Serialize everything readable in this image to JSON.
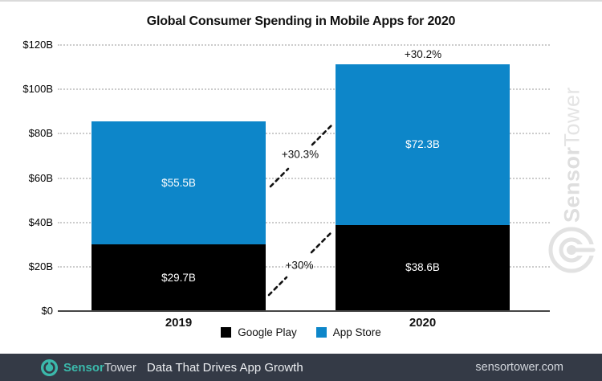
{
  "title": "Global Consumer Spending in Mobile Apps for 2020",
  "chart_data": {
    "type": "stacked-bar",
    "categories": [
      "2019",
      "2020"
    ],
    "series": [
      {
        "name": "Google Play",
        "color": "#000000",
        "values": [
          29.7,
          38.6
        ],
        "labels": [
          "$29.7B",
          "$38.6B"
        ]
      },
      {
        "name": "App Store",
        "color": "#0d86c9",
        "values": [
          55.5,
          72.3
        ],
        "labels": [
          "$55.5B",
          "$72.3B"
        ]
      }
    ],
    "totals": [
      85.2,
      110.9
    ],
    "growth_annotations": {
      "total": "+30.2%",
      "app_store": "+30.3%",
      "google_play": "+30%"
    },
    "ylabel_ticks": [
      "$0",
      "$20B",
      "$40B",
      "$60B",
      "$80B",
      "$100B",
      "$120B"
    ],
    "ymax": 120,
    "ystep": 20,
    "ylim": [
      0,
      120
    ],
    "grid": "horizontal-dotted",
    "legend_position": "bottom-center"
  },
  "legend": [
    {
      "label": "Google Play",
      "color": "#000000"
    },
    {
      "label": "App Store",
      "color": "#0d86c9"
    }
  ],
  "watermark": {
    "brand_bold": "Sensor",
    "brand_light": "Tower"
  },
  "footer": {
    "brand_bold": "Sensor",
    "brand_light": "Tower",
    "tagline": "Data That Drives App Growth",
    "url": "sensortower.com"
  },
  "colors": {
    "app_store_blue": "#0d86c9",
    "google_play_black": "#000000",
    "footer_bg": "#343a46",
    "brand_teal": "#3bb9ab",
    "watermark_gray": "#e2e2e2",
    "gridline_gray": "#cccccc",
    "axis_gray": "#454545"
  }
}
